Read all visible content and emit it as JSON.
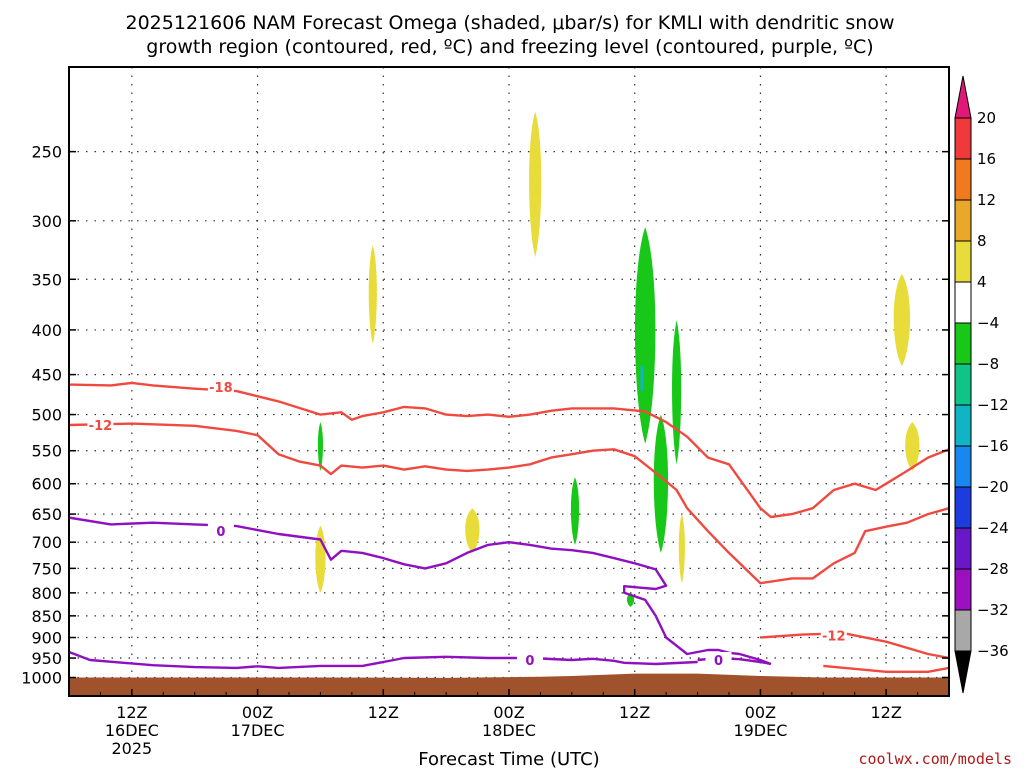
{
  "chart_data": {
    "type": "time-height-cross-section",
    "title_line1": "2025121606 NAM Forecast Omega (shaded, μbar/s) for KMLI with dendritic snow",
    "title_line2": "growth region (contoured, red, ºC) and freezing level (contoured, purple, ºC)",
    "xlabel": "Forecast Time (UTC)",
    "credit": "coolwx.com/models",
    "x_range_hours": [
      0,
      84
    ],
    "x_unit": "hours since 2025121606",
    "y_range_mb": [
      1050,
      200
    ],
    "y_ticks_mb": [
      250,
      300,
      350,
      400,
      450,
      500,
      550,
      600,
      650,
      700,
      750,
      800,
      850,
      900,
      950,
      1000
    ],
    "y_tick_labels": [
      "250",
      "300",
      "350",
      "400",
      "450",
      "500",
      "550",
      "600",
      "650",
      "700",
      "750",
      "800",
      "850",
      "900",
      "950",
      "1000"
    ],
    "x_ticks": [
      {
        "hour": 6,
        "lines": [
          "12Z",
          "16DEC",
          "2025"
        ]
      },
      {
        "hour": 18,
        "lines": [
          "00Z",
          "17DEC"
        ]
      },
      {
        "hour": 30,
        "lines": [
          "12Z"
        ]
      },
      {
        "hour": 42,
        "lines": [
          "00Z",
          "18DEC"
        ]
      },
      {
        "hour": 54,
        "lines": [
          "12Z"
        ]
      },
      {
        "hour": 66,
        "lines": [
          "00Z",
          "19DEC"
        ]
      },
      {
        "hour": 78,
        "lines": [
          "12Z"
        ]
      }
    ],
    "colorbar": {
      "labels": [
        "20",
        "16",
        "12",
        "8",
        "4",
        "−4",
        "−8",
        "−12",
        "−16",
        "−20",
        "−24",
        "−28",
        "−32",
        "−36"
      ],
      "bands": [
        {
          "range": [
            16,
            20
          ],
          "color": "#f03a3a"
        },
        {
          "range": [
            12,
            16
          ],
          "color": "#f07a1c"
        },
        {
          "range": [
            8,
            12
          ],
          "color": "#e8a82a"
        },
        {
          "range": [
            4,
            8
          ],
          "color": "#e8dc3a"
        },
        {
          "range": [
            -4,
            4
          ],
          "color": "#ffffff"
        },
        {
          "range": [
            -8,
            -4
          ],
          "color": "#18c818"
        },
        {
          "range": [
            -12,
            -8
          ],
          "color": "#10c488"
        },
        {
          "range": [
            -16,
            -12
          ],
          "color": "#10b4c4"
        },
        {
          "range": [
            -20,
            -16
          ],
          "color": "#1888f0"
        },
        {
          "range": [
            -24,
            -20
          ],
          "color": "#1c3ce0"
        },
        {
          "range": [
            -28,
            -24
          ],
          "color": "#6818c8"
        },
        {
          "range": [
            -32,
            -28
          ],
          "color": "#9c10c0"
        },
        {
          "range": [
            -36,
            -32
          ],
          "color": "#a8a8a8"
        }
      ],
      "top_arrow_color": "#e01878",
      "bottom_arrow_color": "#000000"
    },
    "colors": {
      "dgz": "#f04a40",
      "freezing": "#9010c0",
      "terrain": "#a0522d",
      "positive_omega": "#e8dc3a",
      "negative_omega": "#18c818",
      "cyan_core": "#10b4c4"
    },
    "terrain": [
      [
        0,
        1000
      ],
      [
        12,
        1000
      ],
      [
        24,
        1000
      ],
      [
        36,
        1001
      ],
      [
        45,
        998
      ],
      [
        48,
        996
      ],
      [
        54,
        990
      ],
      [
        60,
        990
      ],
      [
        66,
        996
      ],
      [
        72,
        1000
      ],
      [
        84,
        1000
      ]
    ],
    "contours": [
      {
        "name": "dgz-18",
        "label": "-18",
        "label_at": [
          14.5,
          465
        ],
        "points": [
          [
            0,
            462
          ],
          [
            4,
            463
          ],
          [
            6,
            460
          ],
          [
            8,
            463
          ],
          [
            12,
            467
          ],
          [
            16,
            470
          ],
          [
            20,
            483
          ],
          [
            24,
            500
          ],
          [
            26,
            497
          ],
          [
            27,
            507
          ],
          [
            28,
            502
          ],
          [
            30,
            497
          ],
          [
            32,
            490
          ],
          [
            34,
            492
          ],
          [
            36,
            500
          ],
          [
            38,
            502
          ],
          [
            40,
            500
          ],
          [
            42,
            503
          ],
          [
            44,
            500
          ],
          [
            46,
            495
          ],
          [
            48,
            492
          ],
          [
            50,
            492
          ],
          [
            52,
            492
          ],
          [
            55,
            496
          ],
          [
            57,
            510
          ],
          [
            59,
            530
          ],
          [
            61,
            560
          ],
          [
            63,
            570
          ],
          [
            66,
            640
          ],
          [
            67,
            655
          ],
          [
            69,
            650
          ],
          [
            71,
            640
          ],
          [
            73,
            610
          ],
          [
            75,
            600
          ],
          [
            77,
            610
          ],
          [
            78,
            600
          ],
          [
            80,
            580
          ],
          [
            82,
            560
          ],
          [
            84,
            548
          ]
        ]
      },
      {
        "name": "dgz-12a",
        "label": "-12",
        "label_at": [
          3,
          514
        ],
        "points": [
          [
            0,
            514
          ],
          [
            6,
            512
          ],
          [
            12,
            515
          ],
          [
            16,
            522
          ],
          [
            18,
            528
          ],
          [
            20,
            555
          ],
          [
            22,
            566
          ],
          [
            24,
            572
          ],
          [
            25,
            585
          ],
          [
            26,
            572
          ],
          [
            28,
            575
          ],
          [
            30,
            572
          ],
          [
            32,
            578
          ],
          [
            34,
            573
          ],
          [
            36,
            578
          ],
          [
            38,
            580
          ],
          [
            40,
            578
          ],
          [
            42,
            575
          ],
          [
            44,
            570
          ],
          [
            46,
            560
          ],
          [
            48,
            555
          ],
          [
            50,
            550
          ],
          [
            52,
            548
          ],
          [
            54,
            558
          ],
          [
            56,
            583
          ],
          [
            58,
            610
          ],
          [
            59,
            640
          ],
          [
            61,
            680
          ],
          [
            63,
            720
          ],
          [
            66,
            780
          ],
          [
            69,
            770
          ],
          [
            71,
            770
          ],
          [
            73,
            740
          ],
          [
            75,
            720
          ],
          [
            76,
            680
          ],
          [
            78,
            672
          ],
          [
            80,
            665
          ],
          [
            82,
            650
          ],
          [
            84,
            640
          ]
        ]
      },
      {
        "name": "dgz-12b",
        "label": "-12",
        "label_at": [
          73,
          895
        ],
        "points": [
          [
            66,
            900
          ],
          [
            70,
            893
          ],
          [
            74,
            890
          ],
          [
            78,
            910
          ],
          [
            82,
            940
          ],
          [
            84,
            950
          ]
        ]
      },
      {
        "name": "dgz-12c",
        "label": "",
        "points": [
          [
            72,
            970
          ],
          [
            78,
            985
          ],
          [
            82,
            985
          ],
          [
            84,
            975
          ]
        ]
      },
      {
        "name": "frz-0",
        "label": "0",
        "label_at": [
          14.5,
          680
        ],
        "points": [
          [
            0,
            656
          ],
          [
            4,
            668
          ],
          [
            8,
            665
          ],
          [
            12,
            668
          ],
          [
            16,
            671
          ],
          [
            20,
            685
          ],
          [
            24,
            695
          ],
          [
            25,
            733
          ],
          [
            26,
            716
          ],
          [
            28,
            720
          ],
          [
            30,
            730
          ],
          [
            32,
            742
          ],
          [
            34,
            750
          ],
          [
            36,
            740
          ],
          [
            38,
            720
          ],
          [
            40,
            705
          ],
          [
            42,
            700
          ],
          [
            44,
            705
          ],
          [
            46,
            712
          ],
          [
            48,
            715
          ],
          [
            50,
            720
          ],
          [
            52,
            730
          ],
          [
            54,
            740
          ],
          [
            56,
            752
          ],
          [
            57,
            785
          ],
          [
            56,
            792
          ],
          [
            53,
            786
          ],
          [
            53,
            800
          ],
          [
            55,
            815
          ],
          [
            56,
            850
          ],
          [
            57,
            900
          ],
          [
            59,
            940
          ],
          [
            61,
            930
          ],
          [
            62,
            930
          ],
          [
            63,
            937
          ],
          [
            64,
            940
          ],
          [
            66,
            955
          ],
          [
            67,
            965
          ]
        ]
      },
      {
        "name": "frz-0b",
        "label": "0",
        "label_at": [
          44,
          955
        ],
        "points": [
          [
            0,
            935
          ],
          [
            2,
            955
          ],
          [
            8,
            968
          ],
          [
            12,
            973
          ],
          [
            16,
            975
          ],
          [
            18,
            971
          ],
          [
            20,
            975
          ],
          [
            24,
            970
          ],
          [
            28,
            970
          ],
          [
            30,
            960
          ],
          [
            32,
            950
          ],
          [
            36,
            947
          ],
          [
            40,
            950
          ],
          [
            44,
            950
          ],
          [
            48,
            955
          ],
          [
            50,
            952
          ],
          [
            52,
            957
          ],
          [
            53,
            962
          ],
          [
            56,
            965
          ],
          [
            60,
            960
          ]
        ]
      },
      {
        "name": "frz-0c",
        "label": "0",
        "label_at": [
          62,
          955
        ],
        "points": [
          [
            60,
            955
          ],
          [
            62,
            950
          ],
          [
            64,
            953
          ],
          [
            66,
            960
          ],
          [
            67,
            965
          ]
        ]
      }
    ],
    "omega_blobs": [
      {
        "name": "omega-plus-upper",
        "color": "#e8dc3a",
        "cx": 44.5,
        "p_top": 225,
        "p_bottom": 330,
        "half_width_h": 0.6
      },
      {
        "name": "omega-plus-left",
        "color": "#e8dc3a",
        "cx": 29.0,
        "p_top": 320,
        "p_bottom": 415,
        "half_width_h": 0.4
      },
      {
        "name": "omega-plus-right-upper",
        "color": "#e8dc3a",
        "cx": 79.5,
        "p_top": 345,
        "p_bottom": 440,
        "half_width_h": 0.8
      },
      {
        "name": "omega-plus-right-lower",
        "color": "#e8dc3a",
        "cx": 80.5,
        "p_top": 510,
        "p_bottom": 580,
        "half_width_h": 0.7
      },
      {
        "name": "omega-plus-mid",
        "color": "#e8dc3a",
        "cx": 38.5,
        "p_top": 640,
        "p_bottom": 720,
        "half_width_h": 0.7
      },
      {
        "name": "omega-plus-low-left",
        "color": "#e8dc3a",
        "cx": 24.0,
        "p_top": 670,
        "p_bottom": 800,
        "half_width_h": 0.5
      },
      {
        "name": "omega-plus-low-right",
        "color": "#e8dc3a",
        "cx": 58.5,
        "p_top": 650,
        "p_bottom": 780,
        "half_width_h": 0.3
      },
      {
        "name": "omega-minus-main",
        "color": "#18c818",
        "cx": 55.0,
        "p_top": 305,
        "p_bottom": 540,
        "half_width_h": 1.0
      },
      {
        "name": "omega-minus-main-lower",
        "color": "#18c818",
        "cx": 56.5,
        "p_top": 500,
        "p_bottom": 720,
        "half_width_h": 0.7
      },
      {
        "name": "omega-minus-side",
        "color": "#18c818",
        "cx": 58.0,
        "p_top": 390,
        "p_bottom": 570,
        "half_width_h": 0.45
      },
      {
        "name": "omega-minus-mid",
        "color": "#18c818",
        "cx": 48.3,
        "p_top": 590,
        "p_bottom": 705,
        "half_width_h": 0.4
      },
      {
        "name": "omega-minus-left",
        "color": "#18c818",
        "cx": 24.0,
        "p_top": 510,
        "p_bottom": 580,
        "half_width_h": 0.25
      },
      {
        "name": "omega-minus-dot",
        "color": "#18c818",
        "cx": 53.6,
        "p_top": 800,
        "p_bottom": 830,
        "half_width_h": 0.35
      }
    ]
  }
}
